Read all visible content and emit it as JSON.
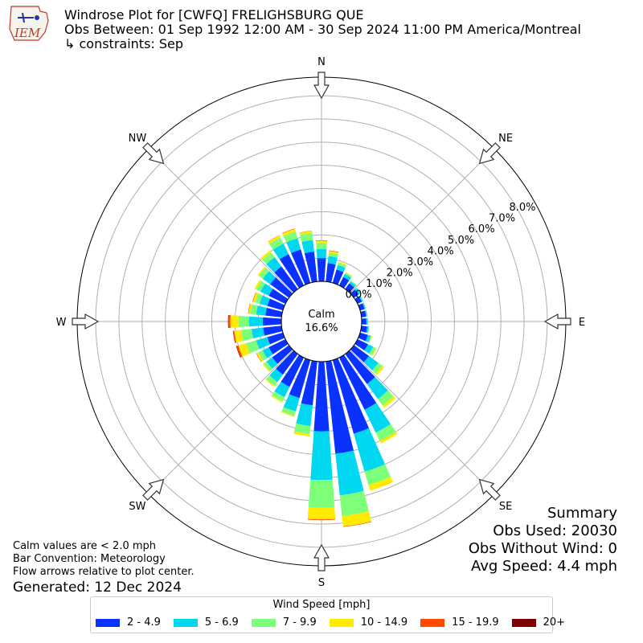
{
  "logo": {
    "text": "IEM"
  },
  "header": {
    "title": "Windrose Plot for [CWFQ] FRELIGHSBURG  QUE",
    "subtitle": "Obs Between: 01 Sep 1992 12:00 AM - 30 Sep 2024 11:00 PM America/Montreal",
    "constraints": "↳ constraints: Sep"
  },
  "summary": {
    "heading": "Summary",
    "obs_used": "Obs Used: 20030",
    "obs_without_wind": "Obs Without Wind: 0",
    "avg_speed": "Avg Speed: 4.4 mph"
  },
  "notes": {
    "calm_note": "Calm values are < 2.0 mph",
    "bar_convention": "Bar Convention: Meteorology",
    "flow_arrows": "Flow arrows relative to plot center.",
    "generated": "Generated: 12 Dec 2024"
  },
  "chart_data": {
    "type": "windrose",
    "calm_label": "Calm",
    "calm_percent": "16.6%",
    "radial_max": 8.0,
    "radial_ticks": [
      "0.0%",
      "1.0%",
      "2.0%",
      "3.0%",
      "4.0%",
      "5.0%",
      "6.0%",
      "7.0%",
      "8.0%"
    ],
    "directions": [
      {
        "label": "N",
        "angle": 0
      },
      {
        "label": "NE",
        "angle": 45
      },
      {
        "label": "E",
        "angle": 90
      },
      {
        "label": "SE",
        "angle": 135
      },
      {
        "label": "S",
        "angle": 180
      },
      {
        "label": "SW",
        "angle": 225
      },
      {
        "label": "W",
        "angle": 270
      },
      {
        "label": "NW",
        "angle": 315
      }
    ],
    "legend_title": "Wind Speed [mph]",
    "bins": [
      {
        "label": "2 - 4.9",
        "color": "#0a32ff"
      },
      {
        "label": "5 - 6.9",
        "color": "#00d7f0"
      },
      {
        "label": "7 - 9.9",
        "color": "#7dff7a"
      },
      {
        "label": "10 - 14.9",
        "color": "#ffea00"
      },
      {
        "label": "15 - 19.9",
        "color": "#ff4a00"
      },
      {
        "label": "20+",
        "color": "#800000"
      }
    ],
    "sectors": [
      {
        "dir": 0,
        "values": [
          1.0,
          0.4,
          0.25,
          0.1,
          0.02,
          0
        ]
      },
      {
        "dir": 10,
        "values": [
          0.8,
          0.3,
          0.15,
          0.08,
          0.02,
          0
        ]
      },
      {
        "dir": 20,
        "values": [
          0.6,
          0.2,
          0.1,
          0.05,
          0,
          0
        ]
      },
      {
        "dir": 30,
        "values": [
          0.4,
          0.15,
          0.07,
          0.02,
          0,
          0
        ]
      },
      {
        "dir": 40,
        "values": [
          0.3,
          0.1,
          0.05,
          0,
          0,
          0
        ]
      },
      {
        "dir": 50,
        "values": [
          0.25,
          0.1,
          0.03,
          0,
          0,
          0
        ]
      },
      {
        "dir": 60,
        "values": [
          0.2,
          0.06,
          0.02,
          0,
          0,
          0
        ]
      },
      {
        "dir": 70,
        "values": [
          0.2,
          0.05,
          0.02,
          0,
          0,
          0
        ]
      },
      {
        "dir": 80,
        "values": [
          0.2,
          0.05,
          0.01,
          0,
          0,
          0
        ]
      },
      {
        "dir": 90,
        "values": [
          0.2,
          0.06,
          0.02,
          0,
          0,
          0
        ]
      },
      {
        "dir": 100,
        "values": [
          0.25,
          0.07,
          0.02,
          0,
          0,
          0
        ]
      },
      {
        "dir": 110,
        "values": [
          0.35,
          0.12,
          0.05,
          0.02,
          0,
          0
        ]
      },
      {
        "dir": 120,
        "values": [
          0.5,
          0.25,
          0.12,
          0.05,
          0,
          0
        ]
      },
      {
        "dir": 130,
        "values": [
          0.8,
          0.5,
          0.2,
          0.1,
          0,
          0
        ]
      },
      {
        "dir": 140,
        "values": [
          1.6,
          0.8,
          0.35,
          0.12,
          0,
          0
        ]
      },
      {
        "dir": 150,
        "values": [
          2.5,
          1.1,
          0.4,
          0.12,
          0,
          0
        ]
      },
      {
        "dir": 160,
        "values": [
          3.3,
          1.7,
          0.6,
          0.25,
          0,
          0
        ]
      },
      {
        "dir": 170,
        "values": [
          4.0,
          1.8,
          0.9,
          0.45,
          0.02,
          0
        ]
      },
      {
        "dir": 180,
        "values": [
          3.0,
          2.1,
          1.2,
          0.5,
          0.03,
          0
        ]
      },
      {
        "dir": 190,
        "values": [
          1.9,
          0.9,
          0.35,
          0.1,
          0,
          0
        ]
      },
      {
        "dir": 200,
        "values": [
          1.7,
          0.6,
          0.2,
          0.05,
          0,
          0
        ]
      },
      {
        "dir": 210,
        "values": [
          1.4,
          0.5,
          0.2,
          0.05,
          0,
          0
        ]
      },
      {
        "dir": 220,
        "values": [
          1.1,
          0.4,
          0.2,
          0.05,
          0,
          0
        ]
      },
      {
        "dir": 230,
        "values": [
          0.9,
          0.3,
          0.15,
          0.05,
          0,
          0
        ]
      },
      {
        "dir": 240,
        "values": [
          0.8,
          0.3,
          0.2,
          0.08,
          0.02,
          0
        ]
      },
      {
        "dir": 250,
        "values": [
          0.7,
          0.5,
          0.45,
          0.35,
          0.08,
          0.02
        ]
      },
      {
        "dir": 260,
        "values": [
          0.8,
          0.5,
          0.45,
          0.3,
          0.05,
          0.01
        ]
      },
      {
        "dir": 270,
        "values": [
          0.8,
          0.6,
          0.45,
          0.35,
          0.08,
          0.02
        ]
      },
      {
        "dir": 280,
        "values": [
          0.7,
          0.4,
          0.25,
          0.08,
          0.02,
          0
        ]
      },
      {
        "dir": 290,
        "values": [
          0.7,
          0.35,
          0.2,
          0.1,
          0.02,
          0
        ]
      },
      {
        "dir": 300,
        "values": [
          0.8,
          0.4,
          0.2,
          0.08,
          0,
          0
        ]
      },
      {
        "dir": 310,
        "values": [
          1.0,
          0.4,
          0.2,
          0.07,
          0,
          0
        ]
      },
      {
        "dir": 320,
        "values": [
          1.2,
          0.5,
          0.25,
          0.1,
          0,
          0
        ]
      },
      {
        "dir": 330,
        "values": [
          1.5,
          0.5,
          0.3,
          0.1,
          0.01,
          0
        ]
      },
      {
        "dir": 340,
        "values": [
          1.5,
          0.5,
          0.3,
          0.12,
          0.02,
          0
        ]
      },
      {
        "dir": 350,
        "values": [
          1.3,
          0.5,
          0.3,
          0.1,
          0.01,
          0
        ]
      }
    ]
  }
}
